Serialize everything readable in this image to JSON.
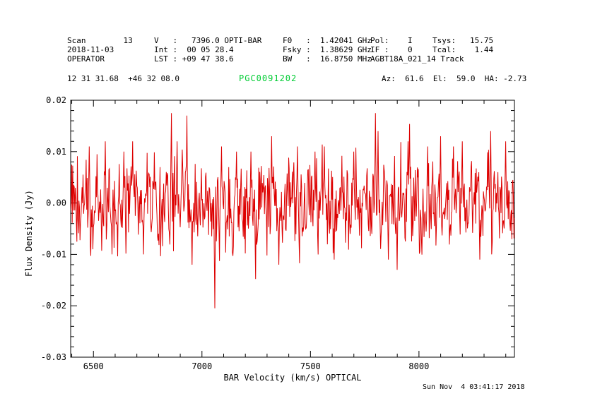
{
  "header": {
    "scan": "Scan        13",
    "velocity": "V   :   7396.0 OPTI-BAR",
    "rest_freq": "F0   :  1.42041 GHz",
    "pol": "Pol:    I",
    "tsys": "Tsys:   15.75",
    "date": "2018-11-03",
    "integration": "Int :  00 05 28.4",
    "sky_freq": "Fsky :  1.38629 GHz",
    "if_num": "IF :    0",
    "tcal": "Tcal:    1.44",
    "observer": "OPERATOR",
    "lst": "LST : +09 47 38.6",
    "bandwidth": "BW   :  16.8750 MHz",
    "project": "AGBT18A_021_14 Track",
    "coords": "12 31 31.68  +46 32 08.0",
    "source": "PGC0091202",
    "pointing": "Az:  61.6  El:  59.0  HA: -2.73"
  },
  "footer": {
    "timestamp": "Sun Nov  4 03:41:17 2018"
  },
  "colors": {
    "line": "#dd0000",
    "title": "#00cc33",
    "text": "#000000",
    "background": "#ffffff"
  },
  "chart_data": {
    "type": "line",
    "title": "PGC0091202",
    "xlabel": "BAR Velocity (km/s) OPTICAL",
    "ylabel": "Flux Density (Jy)",
    "xlim": [
      6395,
      8440
    ],
    "ylim": [
      -0.03,
      0.02
    ],
    "xticks": [
      {
        "v": 6500,
        "label": "6500"
      },
      {
        "v": 7000,
        "label": "7000"
      },
      {
        "v": 7500,
        "label": "7500"
      },
      {
        "v": 8000,
        "label": "8000"
      }
    ],
    "yticks": [
      {
        "v": 0.02,
        "label": "0.02"
      },
      {
        "v": 0.01,
        "label": "0.01"
      },
      {
        "v": 0.0,
        "label": "0.00"
      },
      {
        "v": -0.01,
        "label": "-0.01"
      },
      {
        "v": -0.02,
        "label": "-0.02"
      },
      {
        "v": -0.03,
        "label": "-0.03"
      }
    ],
    "x_minor_step": 100,
    "y_minor_step": 0.002,
    "grid": false,
    "legend": false,
    "line_color": "#dd0000",
    "series_description": "baseline receiver noise, no detected spectral line, mean ~0.000 Jy",
    "n_points": 860,
    "noise_sigma": 0.0045,
    "ar_coeff": 0.25,
    "seed": 1813,
    "spikes": [
      {
        "x": 6480,
        "y": 0.011
      },
      {
        "x": 6555,
        "y": 0.012
      },
      {
        "x": 6585,
        "y": -0.01
      },
      {
        "x": 6640,
        "y": 0.01
      },
      {
        "x": 6680,
        "y": 0.012
      },
      {
        "x": 6730,
        "y": -0.01
      },
      {
        "x": 6860,
        "y": 0.0175
      },
      {
        "x": 6885,
        "y": 0.012
      },
      {
        "x": 6930,
        "y": 0.017
      },
      {
        "x": 6955,
        "y": -0.012
      },
      {
        "x": 7060,
        "y": -0.0205
      },
      {
        "x": 7090,
        "y": 0.011
      },
      {
        "x": 7160,
        "y": 0.01
      },
      {
        "x": 7225,
        "y": 0.01
      },
      {
        "x": 7320,
        "y": 0.013
      },
      {
        "x": 7355,
        "y": -0.012
      },
      {
        "x": 7440,
        "y": 0.011
      },
      {
        "x": 7520,
        "y": 0.01
      },
      {
        "x": 7565,
        "y": 0.011
      },
      {
        "x": 7610,
        "y": -0.011
      },
      {
        "x": 7700,
        "y": 0.01
      },
      {
        "x": 7800,
        "y": 0.0175
      },
      {
        "x": 7812,
        "y": 0.014
      },
      {
        "x": 7860,
        "y": -0.011
      },
      {
        "x": 7900,
        "y": -0.013
      },
      {
        "x": 7950,
        "y": 0.012
      },
      {
        "x": 8040,
        "y": 0.011
      },
      {
        "x": 8100,
        "y": 0.013
      },
      {
        "x": 8160,
        "y": 0.011
      },
      {
        "x": 8200,
        "y": 0.012
      },
      {
        "x": 8280,
        "y": -0.011
      },
      {
        "x": 8330,
        "y": 0.014
      },
      {
        "x": 8400,
        "y": 0.012
      }
    ]
  }
}
